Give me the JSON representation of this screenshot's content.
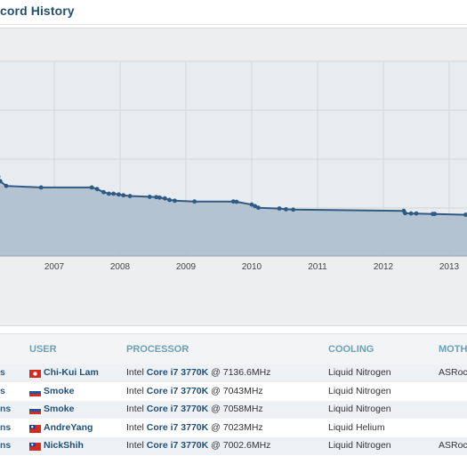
{
  "page": {
    "title": "cord History"
  },
  "chart_data": {
    "type": "line",
    "x_ticks": [
      "2007",
      "2008",
      "2009",
      "2010",
      "2011",
      "2012",
      "2013"
    ],
    "series": [
      {
        "x": [
          2005.82,
          2005.9,
          2005.92,
          2005.95,
          2005.98,
          2006.0,
          2006.02,
          2006.04,
          2006.15,
          2006.18,
          2006.27,
          2006.8,
          2007.57,
          2007.65,
          2007.75,
          2007.83,
          2007.9,
          2007.98,
          2008.05,
          2008.15,
          2008.45,
          2008.55,
          2008.6,
          2008.68,
          2008.75,
          2008.83,
          2009.13,
          2009.72,
          2009.77,
          2010.0,
          2010.05,
          2010.1,
          2010.42,
          2010.52,
          2010.63,
          2012.31,
          2012.33,
          2012.42,
          2012.5,
          2012.75,
          2012.78,
          2013.25
        ],
        "y": [
          282,
          282,
          277,
          273,
          271,
          270,
          268,
          232,
          226,
          223,
          220,
          219,
          219,
          218,
          216,
          215,
          215,
          214.5,
          214,
          213.5,
          213,
          212.8,
          212.5,
          212,
          211,
          210.5,
          210,
          210,
          209.8,
          208,
          207,
          206,
          205.5,
          205,
          204.8,
          204,
          202.5,
          202.3,
          202.3,
          202,
          202,
          201.5
        ]
      }
    ]
  },
  "table": {
    "headers": {
      "user": "USER",
      "processor": "PROCESSOR",
      "cooling": "COOLING",
      "mother": "MOTHE"
    },
    "rows": [
      {
        "frag": "s",
        "flag": "hk",
        "user": "Chi-Kui Lam",
        "cpu_pre": "Intel ",
        "cpu_bold": "Core i7 3770K",
        "cpu_post": " @ 7136.6MHz",
        "cooling": "Liquid Nitrogen",
        "mb": "ASRoc"
      },
      {
        "frag": "s",
        "flag": "ru",
        "user": "Smoke",
        "cpu_pre": "Intel ",
        "cpu_bold": "Core i7 3770K",
        "cpu_post": " @ 7043MHz",
        "cooling": "Liquid Nitrogen",
        "mb": ""
      },
      {
        "frag": "ns",
        "flag": "ru",
        "user": "Smoke",
        "cpu_pre": "Intel ",
        "cpu_bold": "Core i7 3770K",
        "cpu_post": " @ 7058MHz",
        "cooling": "Liquid Nitrogen",
        "mb": ""
      },
      {
        "frag": "ns",
        "flag": "tw",
        "user": "AndreYang",
        "cpu_pre": "Intel ",
        "cpu_bold": "Core i7 3770K",
        "cpu_post": " @ 7023MHz",
        "cooling": "Liquid Helium",
        "mb": ""
      },
      {
        "frag": "ns",
        "flag": "tw",
        "user": "NickShih",
        "cpu_pre": "Intel ",
        "cpu_bold": "Core i7 3770K",
        "cpu_post": " @ 7002.6MHz",
        "cooling": "Liquid Nitrogen",
        "mb": "ASRoc"
      }
    ]
  }
}
